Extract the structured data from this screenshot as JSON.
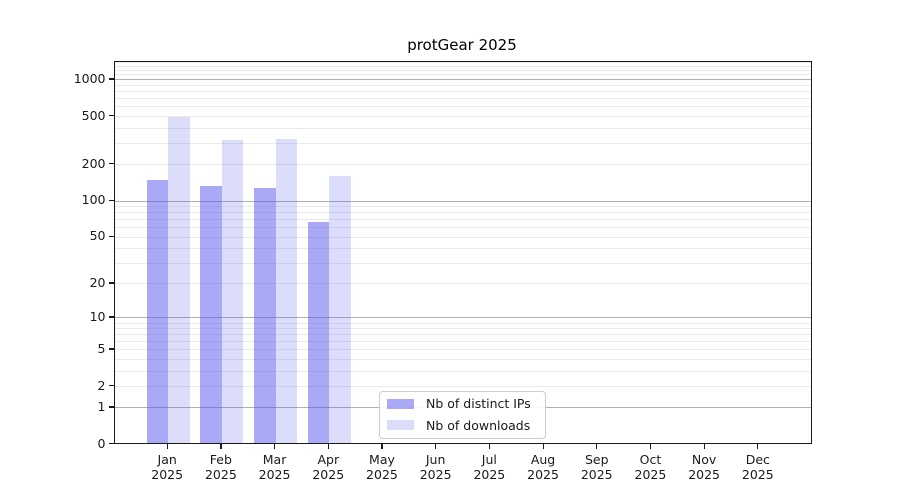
{
  "title": "protGear 2025",
  "chart_data": {
    "type": "bar",
    "title": "protGear 2025",
    "months": [
      "Jan",
      "Feb",
      "Mar",
      "Apr",
      "May",
      "Jun",
      "Jul",
      "Aug",
      "Sep",
      "Oct",
      "Nov",
      "Dec"
    ],
    "year_label": "2025",
    "categories": [
      "Jan 2025",
      "Feb 2025",
      "Mar 2025",
      "Apr 2025",
      "May 2025",
      "Jun 2025",
      "Jul 2025",
      "Aug 2025",
      "Sep 2025",
      "Oct 2025",
      "Nov 2025",
      "Dec 2025"
    ],
    "series": [
      {
        "name": "Nb of distinct IPs",
        "color": "rgba(85,85,238,0.505)",
        "color_on_white": "#a9a9f6",
        "values": [
          145,
          129,
          123,
          64,
          0,
          0,
          0,
          0,
          0,
          0,
          0,
          0
        ]
      },
      {
        "name": "Nb of downloads",
        "color": "rgba(85,85,238,0.206)",
        "color_on_white": "#dcdcf8",
        "values": [
          477,
          308,
          313,
          155,
          0,
          0,
          0,
          0,
          0,
          0,
          0,
          0
        ]
      }
    ],
    "y_scale": "log10(1+y)",
    "y_ticks": [
      0,
      1,
      2,
      5,
      10,
      20,
      50,
      100,
      200,
      500,
      1000
    ],
    "ylim": [
      0,
      1420
    ],
    "grid": {
      "axis": "y",
      "major_lines": [
        1,
        10,
        100,
        1000
      ],
      "major_color": "#b0b0b0",
      "minor_color": "#eaeaea"
    },
    "legend": {
      "location": "inside bottom-center",
      "border_color": "#cccccc"
    },
    "bar_layout": "pairs centered on month tick, IPs left, downloads right"
  }
}
